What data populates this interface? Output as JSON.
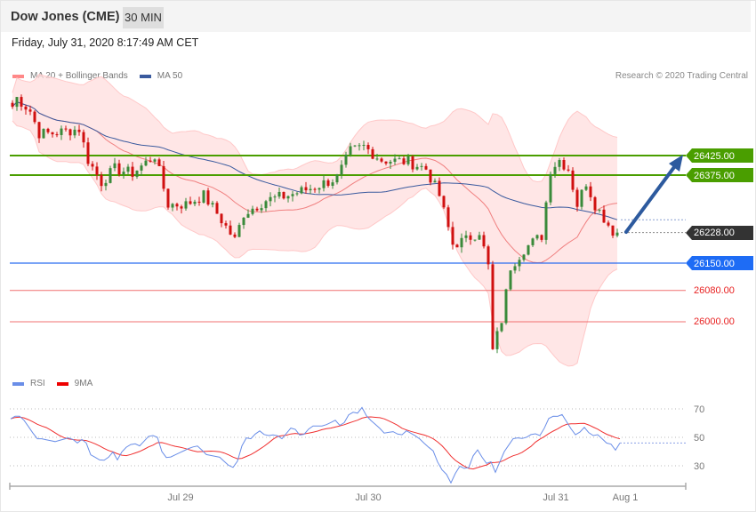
{
  "header": {
    "title": "Dow Jones (CME)",
    "timeframe": "30 MIN"
  },
  "date": "Friday, July 31, 2020 8:17:49 AM CET",
  "legend": {
    "ma20": "MA 20 + Bollinger Bands",
    "ma50": "MA 50",
    "rsi": "RSI",
    "rsi_ma": "9MA"
  },
  "credit": "Research © 2020 Trading Central",
  "colors": {
    "up": "#3a8a3a",
    "down": "#d01010",
    "band": "#ffdede",
    "ma20": "#f08080",
    "ma50": "#3a5a9e",
    "resistance": "#4a9e00",
    "pivot": "#2a6ef0",
    "support": "#f07070",
    "last": "#333333",
    "rsi": "#6a8ee8",
    "rsi_ma": "#f03030"
  },
  "levels": {
    "resistance": [
      {
        "value": 26425,
        "label": "26425.00"
      },
      {
        "value": 26375,
        "label": "26375.00"
      }
    ],
    "last": {
      "value": 26228,
      "label": "26228.00"
    },
    "pivot": {
      "value": 26150,
      "label": "26150.00"
    },
    "support": [
      {
        "value": 26080,
        "label": "26080.00"
      },
      {
        "value": 26000,
        "label": "26000.00"
      }
    ]
  },
  "x_labels": [
    "Jul 29",
    "Jul 30",
    "Jul 31",
    "Aug 1"
  ],
  "rsi_ticks": [
    "70",
    "50",
    "30"
  ],
  "chart_data": {
    "type": "candlestick",
    "candle_count": 137,
    "price_path": [
      [
        0,
        26550
      ],
      [
        1,
        26573
      ],
      [
        4,
        26539
      ],
      [
        6,
        26482
      ],
      [
        9,
        26482
      ],
      [
        15,
        26493
      ],
      [
        17,
        26414
      ],
      [
        20,
        26357
      ],
      [
        23,
        26391
      ],
      [
        27,
        26380
      ],
      [
        32,
        26425
      ],
      [
        35,
        26300
      ],
      [
        39,
        26300
      ],
      [
        43,
        26323
      ],
      [
        46,
        26277
      ],
      [
        50,
        26209
      ],
      [
        52,
        26277
      ],
      [
        57,
        26311
      ],
      [
        62,
        26323
      ],
      [
        68,
        26345
      ],
      [
        73,
        26368
      ],
      [
        76,
        26436
      ],
      [
        79,
        26448
      ],
      [
        83,
        26414
      ],
      [
        89,
        26409
      ],
      [
        93,
        26391
      ],
      [
        96,
        26323
      ],
      [
        99,
        26198
      ],
      [
        102,
        26209
      ],
      [
        105,
        26232
      ],
      [
        107,
        26141
      ],
      [
        108,
        25925
      ],
      [
        110,
        26005
      ],
      [
        112,
        26141
      ],
      [
        115,
        26186
      ],
      [
        119,
        26220
      ],
      [
        121,
        26391
      ],
      [
        123,
        26414
      ],
      [
        125,
        26391
      ],
      [
        127,
        26300
      ],
      [
        129,
        26357
      ],
      [
        131,
        26300
      ],
      [
        133,
        26266
      ],
      [
        135,
        26232
      ],
      [
        136,
        26228
      ]
    ],
    "rsi_path": [
      [
        0,
        63
      ],
      [
        1.6,
        66
      ],
      [
        3,
        62
      ],
      [
        4.8,
        54
      ],
      [
        5.8,
        49
      ],
      [
        7,
        49
      ],
      [
        10,
        47
      ],
      [
        13.4,
        50
      ],
      [
        15,
        46
      ],
      [
        16.6,
        50
      ],
      [
        17.8,
        38
      ],
      [
        19,
        36
      ],
      [
        20.6,
        33
      ],
      [
        22,
        36
      ],
      [
        22.6,
        43
      ],
      [
        23.8,
        33
      ],
      [
        25.4,
        42
      ],
      [
        27.6,
        46
      ],
      [
        29,
        44
      ],
      [
        31.4,
        52
      ],
      [
        33,
        50
      ],
      [
        34,
        40
      ],
      [
        35.2,
        35
      ],
      [
        37.2,
        38
      ],
      [
        40.6,
        43
      ],
      [
        42.2,
        44
      ],
      [
        43.8,
        38
      ],
      [
        47,
        36
      ],
      [
        49.8,
        28
      ],
      [
        51.4,
        35
      ],
      [
        52.4,
        50
      ],
      [
        54,
        49
      ],
      [
        55.8,
        55
      ],
      [
        57.4,
        51
      ],
      [
        59.6,
        52
      ],
      [
        61,
        49
      ],
      [
        63.4,
        58
      ],
      [
        65.4,
        50
      ],
      [
        67.6,
        58
      ],
      [
        70.4,
        58
      ],
      [
        73,
        62
      ],
      [
        74.4,
        57
      ],
      [
        76.4,
        68
      ],
      [
        78,
        67
      ],
      [
        79,
        71
      ],
      [
        80.2,
        64
      ],
      [
        82.8,
        57
      ],
      [
        84,
        53
      ],
      [
        86,
        54
      ],
      [
        87.8,
        51
      ],
      [
        88.8,
        55
      ],
      [
        91.6,
        50
      ],
      [
        93.6,
        44
      ],
      [
        95.2,
        40
      ],
      [
        96.4,
        29
      ],
      [
        98,
        24
      ],
      [
        99,
        18
      ],
      [
        100.8,
        30
      ],
      [
        102.8,
        27
      ],
      [
        104.6,
        42
      ],
      [
        105.6,
        40
      ],
      [
        106.6,
        30
      ],
      [
        107.8,
        35
      ],
      [
        108.8,
        24
      ],
      [
        111,
        40
      ],
      [
        113.2,
        50
      ],
      [
        115.4,
        49
      ],
      [
        117.6,
        53
      ],
      [
        119.2,
        51
      ],
      [
        121.4,
        66
      ],
      [
        122.4,
        64
      ],
      [
        124,
        66
      ],
      [
        126.2,
        55
      ],
      [
        127.2,
        51
      ],
      [
        129,
        57
      ],
      [
        130.6,
        51
      ],
      [
        132.2,
        52
      ],
      [
        133.8,
        46
      ],
      [
        134.8,
        46
      ],
      [
        136,
        41
      ],
      [
        137,
        46
      ]
    ],
    "price_range": [
      25850,
      26620
    ],
    "rsi_range": [
      15,
      80
    ]
  }
}
